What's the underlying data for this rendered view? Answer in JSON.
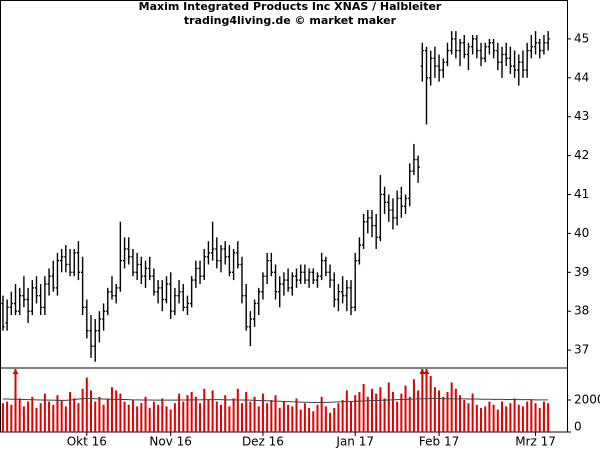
{
  "chart_data": {
    "type": "ohlc",
    "title": "Maxim Integrated Products Inc XNAS / Halbleiter",
    "subtitle": "trading4living.de © market maker",
    "color": "#000000",
    "xlim": [
      -0.7,
      134.5
    ],
    "xticks": [
      {
        "value": 20,
        "label": "Okt 16"
      },
      {
        "value": 40,
        "label": "Nov 16"
      },
      {
        "value": 62,
        "label": "Dez 16"
      },
      {
        "value": 84,
        "label": "Jan 17"
      },
      {
        "value": 104,
        "label": "Feb 17"
      },
      {
        "value": 127,
        "label": "Mrz 17"
      }
    ],
    "ylim": [
      36.54,
      46.0
    ],
    "yticks": [
      37,
      38,
      39,
      40,
      41,
      42,
      43,
      44,
      45
    ],
    "ohlc": [
      [
        38.2,
        38.4,
        37.5,
        37.6
      ],
      [
        37.7,
        38.3,
        37.5,
        38.1
      ],
      [
        38.1,
        38.5,
        37.9,
        38.2
      ],
      [
        38.2,
        38.7,
        37.9,
        38.0
      ],
      [
        38.0,
        38.6,
        37.9,
        38.4
      ],
      [
        38.4,
        38.9,
        38.1,
        38.3
      ],
      [
        38.3,
        38.6,
        37.7,
        38.0
      ],
      [
        38.0,
        38.8,
        37.9,
        38.6
      ],
      [
        38.6,
        38.9,
        38.2,
        38.4
      ],
      [
        38.4,
        38.7,
        37.9,
        38.1
      ],
      [
        38.1,
        38.9,
        37.9,
        38.7
      ],
      [
        38.7,
        39.1,
        38.4,
        38.9
      ],
      [
        38.9,
        39.3,
        38.5,
        38.6
      ],
      [
        38.6,
        39.5,
        38.4,
        39.3
      ],
      [
        39.3,
        39.6,
        39.0,
        39.4
      ],
      [
        39.4,
        39.7,
        39.0,
        39.2
      ],
      [
        39.2,
        39.6,
        38.9,
        39.0
      ],
      [
        39.0,
        39.6,
        38.9,
        39.5
      ],
      [
        39.5,
        39.8,
        38.8,
        39.0
      ],
      [
        39.0,
        39.4,
        37.9,
        38.1
      ],
      [
        38.1,
        38.3,
        37.3,
        37.5
      ],
      [
        37.5,
        37.9,
        36.8,
        37.1
      ],
      [
        37.1,
        37.8,
        36.7,
        37.5
      ],
      [
        37.5,
        38.0,
        37.2,
        37.8
      ],
      [
        37.8,
        38.2,
        37.5,
        38.0
      ],
      [
        38.0,
        38.6,
        37.9,
        38.5
      ],
      [
        38.5,
        38.9,
        38.3,
        38.4
      ],
      [
        38.4,
        38.7,
        38.2,
        38.6
      ],
      [
        38.6,
        40.3,
        38.5,
        39.3
      ],
      [
        39.3,
        39.9,
        39.1,
        39.6
      ],
      [
        39.6,
        39.9,
        39.2,
        39.4
      ],
      [
        39.4,
        39.6,
        38.9,
        39.0
      ],
      [
        39.0,
        39.5,
        38.8,
        39.2
      ],
      [
        39.2,
        39.4,
        38.7,
        38.9
      ],
      [
        38.9,
        39.3,
        38.6,
        39.1
      ],
      [
        39.1,
        39.4,
        38.8,
        38.9
      ],
      [
        38.9,
        39.1,
        38.4,
        38.5
      ],
      [
        38.5,
        38.8,
        38.2,
        38.6
      ],
      [
        38.6,
        38.8,
        38.0,
        38.3
      ],
      [
        38.3,
        38.9,
        38.2,
        38.7
      ],
      [
        38.7,
        39.0,
        37.8,
        38.0
      ],
      [
        38.0,
        38.6,
        37.9,
        38.4
      ],
      [
        38.4,
        38.8,
        38.2,
        38.5
      ],
      [
        38.5,
        38.7,
        38.0,
        38.1
      ],
      [
        38.1,
        38.4,
        37.9,
        38.2
      ],
      [
        38.2,
        38.9,
        38.1,
        38.8
      ],
      [
        38.8,
        39.3,
        38.6,
        39.1
      ],
      [
        39.1,
        39.3,
        38.7,
        38.9
      ],
      [
        38.9,
        39.6,
        38.8,
        39.4
      ],
      [
        39.4,
        39.8,
        39.2,
        39.5
      ],
      [
        39.5,
        40.3,
        39.3,
        39.6
      ],
      [
        39.6,
        39.9,
        39.1,
        39.3
      ],
      [
        39.3,
        39.7,
        39.0,
        39.6
      ],
      [
        39.6,
        39.8,
        39.2,
        39.4
      ],
      [
        39.4,
        39.7,
        38.9,
        39.0
      ],
      [
        39.0,
        39.6,
        38.8,
        39.5
      ],
      [
        39.5,
        39.8,
        39.1,
        39.2
      ],
      [
        39.2,
        39.4,
        38.2,
        38.4
      ],
      [
        38.4,
        38.7,
        37.5,
        37.6
      ],
      [
        37.6,
        38.0,
        37.1,
        37.8
      ],
      [
        37.8,
        38.3,
        37.6,
        38.2
      ],
      [
        38.2,
        38.6,
        37.9,
        38.5
      ],
      [
        38.5,
        39.0,
        38.3,
        38.9
      ],
      [
        38.9,
        39.5,
        38.7,
        39.3
      ],
      [
        39.3,
        39.5,
        38.9,
        39.0
      ],
      [
        39.0,
        39.2,
        38.3,
        38.5
      ],
      [
        38.5,
        38.9,
        38.1,
        38.7
      ],
      [
        38.7,
        39.0,
        38.4,
        38.8
      ],
      [
        38.8,
        39.1,
        38.5,
        38.6
      ],
      [
        38.6,
        39.0,
        38.4,
        38.9
      ],
      [
        38.9,
        39.1,
        38.6,
        38.8
      ],
      [
        38.8,
        39.2,
        38.7,
        39.0
      ],
      [
        39.0,
        39.2,
        38.7,
        38.8
      ],
      [
        38.8,
        39.1,
        38.6,
        39.0
      ],
      [
        39.0,
        39.1,
        38.7,
        38.8
      ],
      [
        38.8,
        39.0,
        38.6,
        38.9
      ],
      [
        38.9,
        39.5,
        38.8,
        39.3
      ],
      [
        39.3,
        39.4,
        38.9,
        39.0
      ],
      [
        39.0,
        39.2,
        38.6,
        38.8
      ],
      [
        38.8,
        39.0,
        38.1,
        38.3
      ],
      [
        38.3,
        38.7,
        38.0,
        38.5
      ],
      [
        38.5,
        38.9,
        38.2,
        38.4
      ],
      [
        38.4,
        38.8,
        38.0,
        38.6
      ],
      [
        38.6,
        38.8,
        37.9,
        38.1
      ],
      [
        38.1,
        39.5,
        38.0,
        39.3
      ],
      [
        39.3,
        39.9,
        39.2,
        39.7
      ],
      [
        39.7,
        40.5,
        39.6,
        40.3
      ],
      [
        40.3,
        40.6,
        40.0,
        40.4
      ],
      [
        40.4,
        40.6,
        39.9,
        40.2
      ],
      [
        40.2,
        40.5,
        39.6,
        39.9
      ],
      [
        39.9,
        41.5,
        39.8,
        41.0
      ],
      [
        41.0,
        41.2,
        40.5,
        40.8
      ],
      [
        40.8,
        41.0,
        40.3,
        40.6
      ],
      [
        40.6,
        40.9,
        40.1,
        40.4
      ],
      [
        40.4,
        41.1,
        40.2,
        40.9
      ],
      [
        40.9,
        41.2,
        40.4,
        40.7
      ],
      [
        40.7,
        41.0,
        40.5,
        40.9
      ],
      [
        40.9,
        41.8,
        40.7,
        41.6
      ],
      [
        41.6,
        42.3,
        41.5,
        41.9
      ],
      [
        41.9,
        42.0,
        41.3,
        41.7
      ],
      [
        44.3,
        44.9,
        43.9,
        44.7
      ],
      [
        44.7,
        44.8,
        42.8,
        44.0
      ],
      [
        44.0,
        44.7,
        43.8,
        44.5
      ],
      [
        44.5,
        44.8,
        44.0,
        44.3
      ],
      [
        44.3,
        44.6,
        43.9,
        44.2
      ],
      [
        44.2,
        44.5,
        44.0,
        44.4
      ],
      [
        44.4,
        44.9,
        44.3,
        44.7
      ],
      [
        44.7,
        45.2,
        44.6,
        45.0
      ],
      [
        45.0,
        45.2,
        44.5,
        44.7
      ],
      [
        44.7,
        45.0,
        44.3,
        44.9
      ],
      [
        44.9,
        45.1,
        44.5,
        44.6
      ],
      [
        44.6,
        44.9,
        44.2,
        44.8
      ],
      [
        44.8,
        45.1,
        44.6,
        45.0
      ],
      [
        45.0,
        45.1,
        44.5,
        44.7
      ],
      [
        44.7,
        44.9,
        44.3,
        44.5
      ],
      [
        44.5,
        44.9,
        44.4,
        44.8
      ],
      [
        44.8,
        45.0,
        44.6,
        44.9
      ],
      [
        44.9,
        45.0,
        44.5,
        44.7
      ],
      [
        44.7,
        44.9,
        44.2,
        44.4
      ],
      [
        44.4,
        44.8,
        44.0,
        44.6
      ],
      [
        44.6,
        44.9,
        44.3,
        44.5
      ],
      [
        44.5,
        44.8,
        44.1,
        44.3
      ],
      [
        44.3,
        44.7,
        44.0,
        44.2
      ],
      [
        44.2,
        44.6,
        43.8,
        44.4
      ],
      [
        44.4,
        44.7,
        44.0,
        44.2
      ],
      [
        44.2,
        44.9,
        44.0,
        44.7
      ],
      [
        44.7,
        45.1,
        44.5,
        44.8
      ],
      [
        44.8,
        45.2,
        44.6,
        44.9
      ],
      [
        44.9,
        45.0,
        44.5,
        44.7
      ],
      [
        44.7,
        45.1,
        44.6,
        44.9
      ],
      [
        44.9,
        45.2,
        44.7,
        45.0
      ]
    ],
    "volume": {
      "color": "#e00000",
      "ylim": [
        0,
        4000
      ],
      "yticks": [
        0,
        2000
      ],
      "values": [
        1800,
        1900,
        1700,
        4500,
        2100,
        1600,
        1900,
        2200,
        1500,
        1800,
        2400,
        1900,
        1700,
        2300,
        2000,
        1600,
        2500,
        2100,
        1800,
        2700,
        3400,
        2600,
        1900,
        2200,
        1700,
        2100,
        2800,
        2600,
        2400,
        1900,
        1700,
        2000,
        1600,
        1800,
        2200,
        1500,
        1900,
        1700,
        2100,
        1600,
        1400,
        1800,
        2400,
        1900,
        2300,
        2500,
        2200,
        1800,
        2700,
        2000,
        2600,
        1900,
        1700,
        2300,
        1600,
        2100,
        2700,
        1800,
        2500,
        1900,
        2200,
        1600,
        2400,
        1800,
        2000,
        2300,
        1500,
        1900,
        1700,
        1600,
        2100,
        1400,
        1800,
        1500,
        1300,
        1700,
        2200,
        1600,
        1200,
        1500,
        1800,
        2000,
        2600,
        1900,
        2300,
        2500,
        3000,
        2200,
        2700,
        2400,
        2800,
        2100,
        3100,
        2500,
        1900,
        2400,
        2900,
        2200,
        3300,
        2600,
        5200,
        4800,
        3500,
        2800,
        2600,
        2200,
        2500,
        3100,
        2700,
        2300,
        2000,
        1800,
        2400,
        1700,
        1500,
        1600,
        1900,
        1700,
        1400,
        1900,
        1600,
        1800,
        2100,
        1700,
        1600,
        1900,
        2000,
        1800,
        1500,
        1900,
        1800
      ],
      "ma": {
        "color": "#404040",
        "values": [
          2060,
          2060,
          2050,
          2050,
          2040,
          2030,
          2020,
          2020,
          2010,
          2000,
          2000,
          1990,
          1990,
          1980,
          1980,
          1980,
          2000,
          2020,
          2060,
          2080,
          2090,
          2090,
          2080,
          2070,
          2060,
          2050,
          2040,
          2040,
          2030,
          2030,
          2020,
          2010,
          2010,
          2000,
          2000,
          2000,
          1990,
          1990,
          1990,
          1990,
          1990,
          1990,
          2000,
          2000,
          2000,
          2010,
          2010,
          2010,
          2020,
          2020,
          2020,
          2020,
          2020,
          2010,
          2010,
          2010,
          2000,
          2000,
          2000,
          1990,
          1980,
          1970,
          1960,
          1950,
          1940,
          1930,
          1920,
          1910,
          1900,
          1890,
          1880,
          1870,
          1860,
          1850,
          1850,
          1840,
          1840,
          1850,
          1860,
          1870,
          1880,
          1890,
          1900,
          1910,
          1920,
          1930,
          1940,
          1950,
          1960,
          1970,
          1980,
          1990,
          2000,
          2010,
          2020,
          2030,
          2040,
          2050,
          2060,
          2070,
          2080,
          2080,
          2090,
          2090,
          2090,
          2080,
          2080,
          2080,
          2070,
          2070,
          2070,
          2060,
          2060,
          2060,
          2050,
          2050,
          2050,
          2040,
          2040,
          2040,
          2030,
          2030,
          2030,
          2020,
          2020,
          2020,
          2020,
          2010,
          2010,
          2010,
          2010
        ]
      }
    }
  }
}
